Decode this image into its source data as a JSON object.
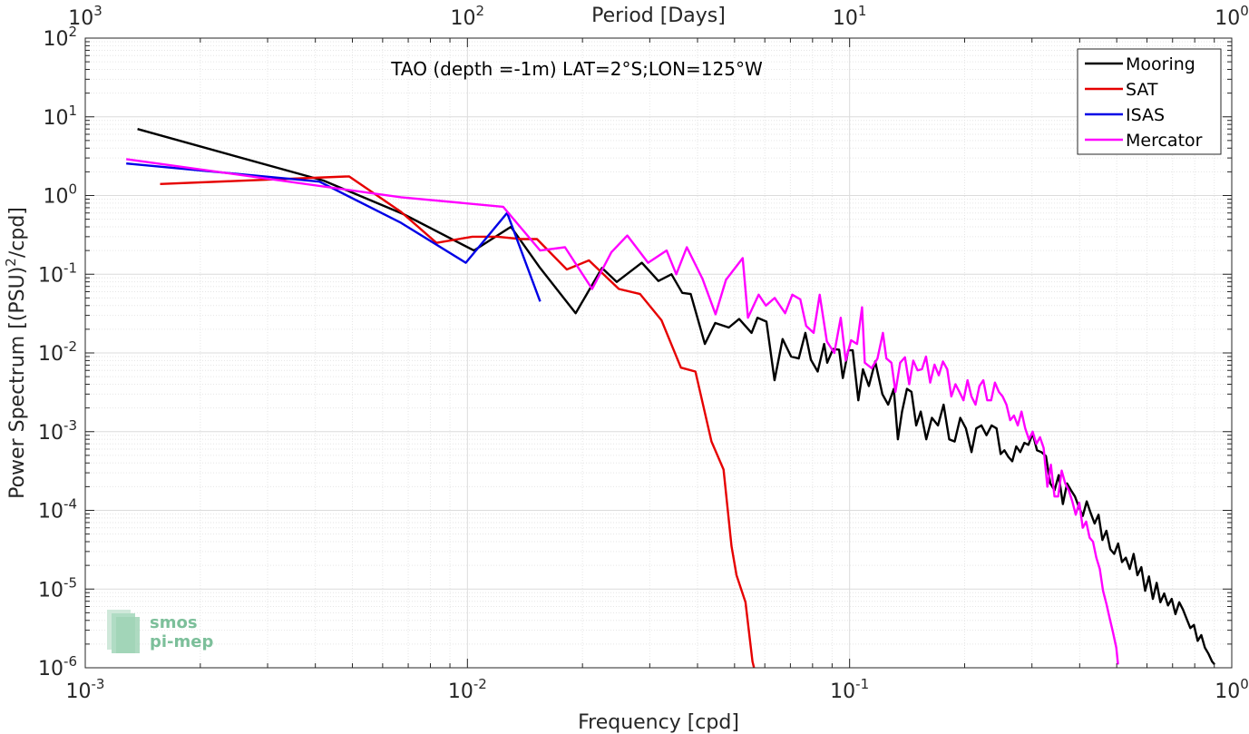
{
  "chart_data": {
    "type": "line",
    "x_scale": "log",
    "y_scale": "log",
    "xlim": [
      0.001,
      1
    ],
    "ylim": [
      1e-06,
      100
    ],
    "grid": true,
    "legend_position": "top-right",
    "annotation": "TAO (depth =-1m) LAT=2°S;LON=125°W",
    "xlabel": "Frequency [cpd]",
    "ylabel_main": "Power Spectrum [(PSU)",
    "ylabel_sup": "2",
    "ylabel_tail": "/cpd]",
    "top_axis_label": "Period [Days]",
    "x_ticks": [
      {
        "base": "10",
        "exp": "-3"
      },
      {
        "base": "10",
        "exp": "-2"
      },
      {
        "base": "10",
        "exp": "-1"
      },
      {
        "base": "10",
        "exp": "0"
      }
    ],
    "y_ticks": [
      {
        "base": "10",
        "exp": "-6"
      },
      {
        "base": "10",
        "exp": "-5"
      },
      {
        "base": "10",
        "exp": "-4"
      },
      {
        "base": "10",
        "exp": "-3"
      },
      {
        "base": "10",
        "exp": "-2"
      },
      {
        "base": "10",
        "exp": "-1"
      },
      {
        "base": "10",
        "exp": "0"
      },
      {
        "base": "10",
        "exp": "1"
      },
      {
        "base": "10",
        "exp": "2"
      }
    ],
    "top_ticks": [
      {
        "base": "10",
        "exp": "3"
      },
      {
        "base": "10",
        "exp": "2"
      },
      {
        "base": "10",
        "exp": "1"
      },
      {
        "base": "10",
        "exp": "0"
      }
    ],
    "series": [
      {
        "name": "Mooring",
        "color": "#000000",
        "points": [
          [
            0.00137,
            7.0
          ],
          [
            0.0042,
            1.55
          ],
          [
            0.0068,
            0.58
          ],
          [
            0.0104,
            0.2
          ],
          [
            0.013,
            0.4
          ],
          [
            0.0155,
            0.12
          ],
          [
            0.0192,
            0.032
          ],
          [
            0.0225,
            0.12
          ],
          [
            0.0246,
            0.08
          ],
          [
            0.0286,
            0.14
          ],
          [
            0.0316,
            0.082
          ],
          [
            0.0342,
            0.1
          ],
          [
            0.0365,
            0.058
          ],
          [
            0.0384,
            0.056
          ],
          [
            0.0418,
            0.013
          ],
          [
            0.0445,
            0.024
          ],
          [
            0.0483,
            0.021
          ],
          [
            0.0514,
            0.027
          ],
          [
            0.0554,
            0.018
          ],
          [
            0.0574,
            0.028
          ],
          [
            0.0606,
            0.025
          ],
          [
            0.0636,
            0.0045
          ],
          [
            0.0668,
            0.015
          ],
          [
            0.0703,
            0.009
          ],
          [
            0.0736,
            0.0085
          ],
          [
            0.0766,
            0.018
          ],
          [
            0.0792,
            0.0082
          ],
          [
            0.0825,
            0.0058
          ],
          [
            0.0858,
            0.013
          ],
          [
            0.0874,
            0.0075
          ],
          [
            0.0905,
            0.0112
          ],
          [
            0.0939,
            0.011
          ],
          [
            0.096,
            0.0048
          ],
          [
            0.0992,
            0.0108
          ],
          [
            0.1019,
            0.0108
          ],
          [
            0.1054,
            0.0025
          ],
          [
            0.1084,
            0.0062
          ],
          [
            0.1123,
            0.0038
          ],
          [
            0.1167,
            0.0078
          ],
          [
            0.1218,
            0.003
          ],
          [
            0.1262,
            0.0022
          ],
          [
            0.1305,
            0.0035
          ],
          [
            0.1338,
            0.0008
          ],
          [
            0.1372,
            0.0018
          ],
          [
            0.1413,
            0.0035
          ],
          [
            0.1452,
            0.0032
          ],
          [
            0.1494,
            0.0012
          ],
          [
            0.1535,
            0.0018
          ],
          [
            0.1587,
            0.0008
          ],
          [
            0.1642,
            0.0015
          ],
          [
            0.1703,
            0.0012
          ],
          [
            0.1762,
            0.0022
          ],
          [
            0.1823,
            0.0008
          ],
          [
            0.1883,
            0.00075
          ],
          [
            0.1948,
            0.0015
          ],
          [
            0.2015,
            0.0011
          ],
          [
            0.2085,
            0.00055
          ],
          [
            0.2145,
            0.0011
          ],
          [
            0.2213,
            0.0012
          ],
          [
            0.2282,
            0.0009
          ],
          [
            0.2352,
            0.0012
          ],
          [
            0.2424,
            0.0011
          ],
          [
            0.2484,
            0.00052
          ],
          [
            0.2541,
            0.00058
          ],
          [
            0.2602,
            0.00048
          ],
          [
            0.2664,
            0.00042
          ],
          [
            0.2729,
            0.00065
          ],
          [
            0.2796,
            0.00055
          ],
          [
            0.2866,
            0.00072
          ],
          [
            0.2937,
            0.00068
          ],
          [
            0.3014,
            0.00095
          ],
          [
            0.3093,
            0.00058
          ],
          [
            0.3175,
            0.00055
          ],
          [
            0.3263,
            0.00049
          ],
          [
            0.3351,
            0.00022
          ],
          [
            0.3437,
            0.00018
          ],
          [
            0.3525,
            0.00028
          ],
          [
            0.3615,
            0.00012
          ],
          [
            0.3706,
            0.00022
          ],
          [
            0.3797,
            0.00018
          ],
          [
            0.3888,
            0.00015
          ],
          [
            0.3982,
            0.00011
          ],
          [
            0.4077,
            8.5e-05
          ],
          [
            0.4174,
            0.00013
          ],
          [
            0.4274,
            9.2e-05
          ],
          [
            0.4376,
            6.8e-05
          ],
          [
            0.4481,
            8.8e-05
          ],
          [
            0.4588,
            4.2e-05
          ],
          [
            0.4698,
            5.5e-05
          ],
          [
            0.481,
            3.2e-05
          ],
          [
            0.4924,
            2.8e-05
          ],
          [
            0.5041,
            3.8e-05
          ],
          [
            0.5161,
            2.2e-05
          ],
          [
            0.5283,
            2.5e-05
          ],
          [
            0.5408,
            1.8e-05
          ],
          [
            0.5536,
            2.8e-05
          ],
          [
            0.5666,
            1.5e-05
          ],
          [
            0.5799,
            1.9e-05
          ],
          [
            0.5935,
            9.5e-06
          ],
          [
            0.6073,
            1.45e-05
          ],
          [
            0.6215,
            7.5e-06
          ],
          [
            0.6359,
            1.2e-05
          ],
          [
            0.6506,
            6.8e-06
          ],
          [
            0.6656,
            8.8e-06
          ],
          [
            0.6809,
            6.2e-06
          ],
          [
            0.6965,
            7.5e-06
          ],
          [
            0.7124,
            4.8e-06
          ],
          [
            0.7286,
            6.8e-06
          ],
          [
            0.7451,
            5.5e-06
          ],
          [
            0.7619,
            4.2e-06
          ],
          [
            0.779,
            3.2e-06
          ],
          [
            0.7964,
            3.5e-06
          ],
          [
            0.8142,
            2.2e-06
          ],
          [
            0.8322,
            2.6e-06
          ],
          [
            0.8506,
            1.8e-06
          ],
          [
            0.8694,
            1.5e-06
          ],
          [
            0.8884,
            1.2e-06
          ],
          [
            0.9018,
            1.1e-06
          ]
        ]
      },
      {
        "name": "SAT",
        "color": "#e60000",
        "points": [
          [
            0.00157,
            1.4
          ],
          [
            0.0049,
            1.75
          ],
          [
            0.0067,
            0.62
          ],
          [
            0.0083,
            0.25
          ],
          [
            0.0103,
            0.3
          ],
          [
            0.012,
            0.3
          ],
          [
            0.0138,
            0.28
          ],
          [
            0.0152,
            0.28
          ],
          [
            0.0182,
            0.115
          ],
          [
            0.0208,
            0.15
          ],
          [
            0.0249,
            0.065
          ],
          [
            0.0283,
            0.056
          ],
          [
            0.0322,
            0.026
          ],
          [
            0.0362,
            0.0065
          ],
          [
            0.0395,
            0.0058
          ],
          [
            0.0435,
            0.00075
          ],
          [
            0.0468,
            0.00033
          ],
          [
            0.0491,
            3.5e-05
          ],
          [
            0.0506,
            1.5e-05
          ],
          [
            0.0534,
            6.8e-06
          ],
          [
            0.0557,
            1.2e-06
          ],
          [
            0.0567,
            8.5e-07
          ]
        ]
      },
      {
        "name": "ISAS",
        "color": "#0000e6",
        "points": [
          [
            0.00128,
            2.55
          ],
          [
            0.0041,
            1.5
          ],
          [
            0.0067,
            0.45
          ],
          [
            0.0099,
            0.14
          ],
          [
            0.0127,
            0.6
          ],
          [
            0.0155,
            0.045
          ]
        ]
      },
      {
        "name": "Mercator",
        "color": "#ff00ff",
        "points": [
          [
            0.00128,
            2.9
          ],
          [
            0.0067,
            0.95
          ],
          [
            0.0124,
            0.72
          ],
          [
            0.0155,
            0.2
          ],
          [
            0.018,
            0.22
          ],
          [
            0.0212,
            0.065
          ],
          [
            0.0238,
            0.19
          ],
          [
            0.0262,
            0.31
          ],
          [
            0.0297,
            0.14
          ],
          [
            0.0332,
            0.2
          ],
          [
            0.0352,
            0.1
          ],
          [
            0.0375,
            0.22
          ],
          [
            0.0412,
            0.088
          ],
          [
            0.0446,
            0.031
          ],
          [
            0.0475,
            0.085
          ],
          [
            0.0525,
            0.16
          ],
          [
            0.0542,
            0.028
          ],
          [
            0.0578,
            0.055
          ],
          [
            0.0604,
            0.04
          ],
          [
            0.0637,
            0.05
          ],
          [
            0.0678,
            0.032
          ],
          [
            0.0708,
            0.055
          ],
          [
            0.0743,
            0.048
          ],
          [
            0.077,
            0.022
          ],
          [
            0.0805,
            0.018
          ],
          [
            0.0835,
            0.055
          ],
          [
            0.0872,
            0.014
          ],
          [
            0.0912,
            0.01
          ],
          [
            0.0948,
            0.028
          ],
          [
            0.0977,
            0.008
          ],
          [
            0.1009,
            0.0145
          ],
          [
            0.1046,
            0.013
          ],
          [
            0.1078,
            0.038
          ],
          [
            0.1096,
            0.0075
          ],
          [
            0.1142,
            0.0064
          ],
          [
            0.1183,
            0.0085
          ],
          [
            0.1222,
            0.018
          ],
          [
            0.1248,
            0.0085
          ],
          [
            0.1287,
            0.0075
          ],
          [
            0.1318,
            0.0032
          ],
          [
            0.1356,
            0.0075
          ],
          [
            0.1396,
            0.0088
          ],
          [
            0.1432,
            0.004
          ],
          [
            0.1467,
            0.008
          ],
          [
            0.1506,
            0.006
          ],
          [
            0.1546,
            0.0062
          ],
          [
            0.1585,
            0.009
          ],
          [
            0.1625,
            0.0042
          ],
          [
            0.1668,
            0.0071
          ],
          [
            0.1712,
            0.0052
          ],
          [
            0.1755,
            0.0078
          ],
          [
            0.1801,
            0.0062
          ],
          [
            0.1846,
            0.0028
          ],
          [
            0.1893,
            0.004
          ],
          [
            0.1938,
            0.0032
          ],
          [
            0.1986,
            0.0025
          ],
          [
            0.2035,
            0.0045
          ],
          [
            0.2084,
            0.0028
          ],
          [
            0.2135,
            0.0022
          ],
          [
            0.2186,
            0.0038
          ],
          [
            0.2238,
            0.0045
          ],
          [
            0.2291,
            0.0025
          ],
          [
            0.2346,
            0.0025
          ],
          [
            0.2401,
            0.0042
          ],
          [
            0.2457,
            0.0032
          ],
          [
            0.2514,
            0.0028
          ],
          [
            0.2573,
            0.0022
          ],
          [
            0.2632,
            0.0014
          ],
          [
            0.2693,
            0.0016
          ],
          [
            0.2755,
            0.0012
          ],
          [
            0.2817,
            0.0018
          ],
          [
            0.2881,
            0.0011
          ],
          [
            0.2947,
            0.0008
          ],
          [
            0.3013,
            0.001
          ],
          [
            0.3081,
            0.0007
          ],
          [
            0.315,
            0.00085
          ],
          [
            0.322,
            0.00062
          ],
          [
            0.3292,
            0.0002
          ],
          [
            0.3364,
            0.00038
          ],
          [
            0.3438,
            0.00015
          ],
          [
            0.3513,
            0.00015
          ],
          [
            0.3589,
            0.00032
          ],
          [
            0.3667,
            0.00022
          ],
          [
            0.3746,
            0.00018
          ],
          [
            0.3826,
            0.00013
          ],
          [
            0.3907,
            8.8e-05
          ],
          [
            0.399,
            0.000125
          ],
          [
            0.4074,
            6e-05
          ],
          [
            0.4159,
            7.2e-05
          ],
          [
            0.4246,
            4.5e-05
          ],
          [
            0.4334,
            4e-05
          ],
          [
            0.4423,
            2.5e-05
          ],
          [
            0.4514,
            1.8e-05
          ],
          [
            0.4606,
            9.5e-06
          ],
          [
            0.4699,
            6.5e-06
          ],
          [
            0.4794,
            4.2e-06
          ],
          [
            0.4891,
            2.8e-06
          ],
          [
            0.4988,
            1.8e-06
          ],
          [
            0.5038,
            1.1e-06
          ]
        ]
      }
    ]
  },
  "logo": {
    "line1": "smos",
    "line2": "pi-mep"
  }
}
